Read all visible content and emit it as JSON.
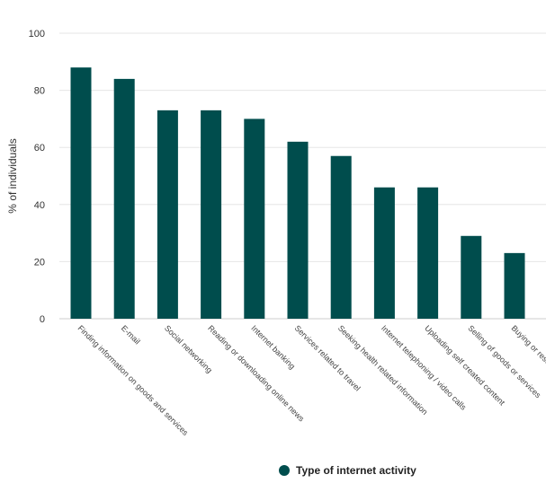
{
  "chart_data": {
    "type": "bar",
    "ylabel": "% of individuals",
    "ylim": [
      0,
      100
    ],
    "yticks": [
      0,
      20,
      40,
      60,
      80,
      100
    ],
    "grid": true,
    "categories": [
      "Finding information on goods and services",
      "E-mail",
      "Social networking",
      "Reading or downloading online news",
      "Internet banking",
      "Services related to travel",
      "Seeking health related information",
      "Internet telephoning / video calls",
      "Uploading self created content",
      "Selling of goods or services",
      "Buying or reselling shares"
    ],
    "series": [
      {
        "name": "Type of internet activity",
        "color": "#004d4d",
        "values": [
          88,
          84,
          73,
          73,
          70,
          62,
          57,
          46,
          46,
          29,
          23
        ]
      }
    ],
    "legend_position": "bottom-center"
  }
}
